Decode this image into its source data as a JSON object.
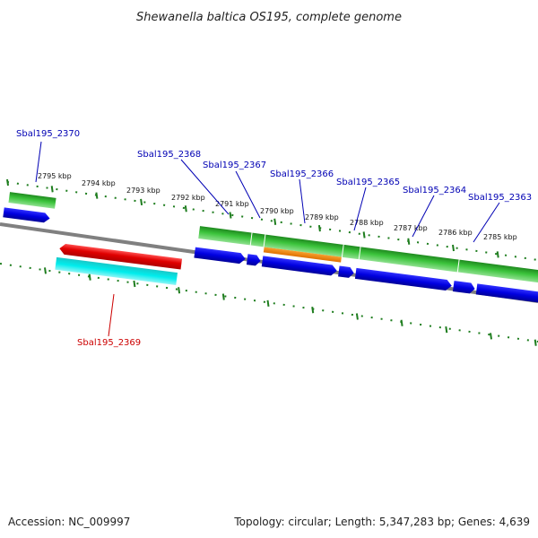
{
  "title": "Shewanella baltica OS195, complete genome",
  "footer": {
    "accession": "Accession: NC_009997",
    "topology": "Topology: circular; Length: 5,347,283 bp; Genes: 4,639"
  },
  "colors": {
    "ruler": "#1e7d1e",
    "backbone": "#808080",
    "cds_plus": "#0000e6",
    "gene_green": "#2fae2f",
    "gene_orange": "#f28a00",
    "cds_minus": "#e00000",
    "gene_cyan": "#00e5e5",
    "label_plus": "#0000b4",
    "label_minus": "#cc0000"
  },
  "ticks": [
    {
      "label": "2795 kbp"
    },
    {
      "label": "2794 kbp"
    },
    {
      "label": "2793 kbp"
    },
    {
      "label": "2792 kbp"
    },
    {
      "label": "2791 kbp"
    },
    {
      "label": "2790 kbp"
    },
    {
      "label": "2789 kbp"
    },
    {
      "label": "2788 kbp"
    },
    {
      "label": "2787 kbp"
    },
    {
      "label": "2786 kbp"
    },
    {
      "label": "2785 kbp"
    }
  ],
  "genes": [
    {
      "label": "Sbal195_2370",
      "strand": "plus"
    },
    {
      "label": "Sbal195_2369",
      "strand": "minus"
    },
    {
      "label": "Sbal195_2368",
      "strand": "plus"
    },
    {
      "label": "Sbal195_2367",
      "strand": "plus"
    },
    {
      "label": "Sbal195_2366",
      "strand": "plus"
    },
    {
      "label": "Sbal195_2365",
      "strand": "plus"
    },
    {
      "label": "Sbal195_2364",
      "strand": "plus"
    },
    {
      "label": "Sbal195_2363",
      "strand": "plus"
    }
  ]
}
